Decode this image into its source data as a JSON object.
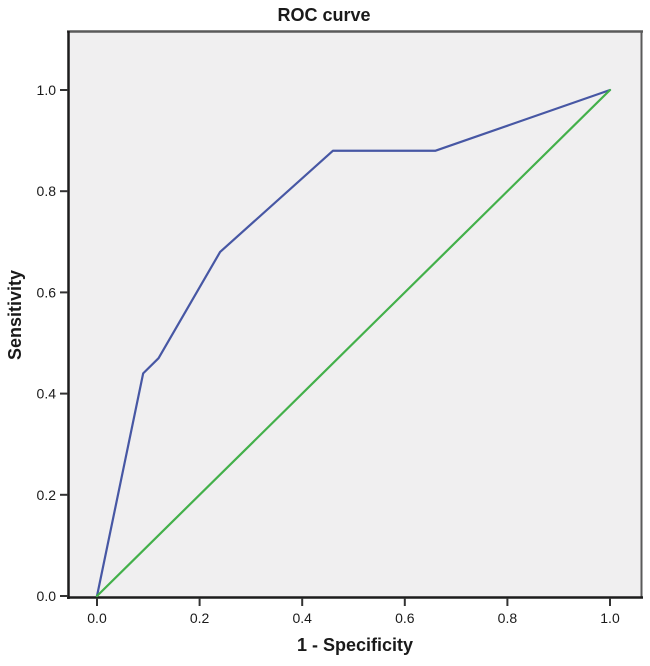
{
  "chart_data": {
    "type": "line",
    "title": "ROC curve",
    "xlabel": "1 - Specificity",
    "ylabel": "Sensitivity",
    "xlim": [
      0.0,
      1.0
    ],
    "ylim": [
      0.0,
      1.0
    ],
    "x_ticks": [
      "0.0",
      "0.2",
      "0.4",
      "0.6",
      "0.8",
      "1.0"
    ],
    "y_ticks": [
      "0.0",
      "0.2",
      "0.4",
      "0.6",
      "0.8",
      "1.0"
    ],
    "grid": false,
    "legend": "none",
    "plot_background_color": "#f0eff0",
    "series": [
      {
        "name": "roc-curve",
        "color": "#4757a4",
        "points": [
          [
            0.0,
            0.0
          ],
          [
            0.09,
            0.44
          ],
          [
            0.12,
            0.47
          ],
          [
            0.24,
            0.68
          ],
          [
            0.46,
            0.88
          ],
          [
            0.66,
            0.88
          ],
          [
            1.0,
            1.0
          ]
        ]
      },
      {
        "name": "reference-diagonal",
        "color": "#43b04a",
        "points": [
          [
            0.0,
            0.0
          ],
          [
            1.0,
            1.0
          ]
        ]
      }
    ]
  }
}
